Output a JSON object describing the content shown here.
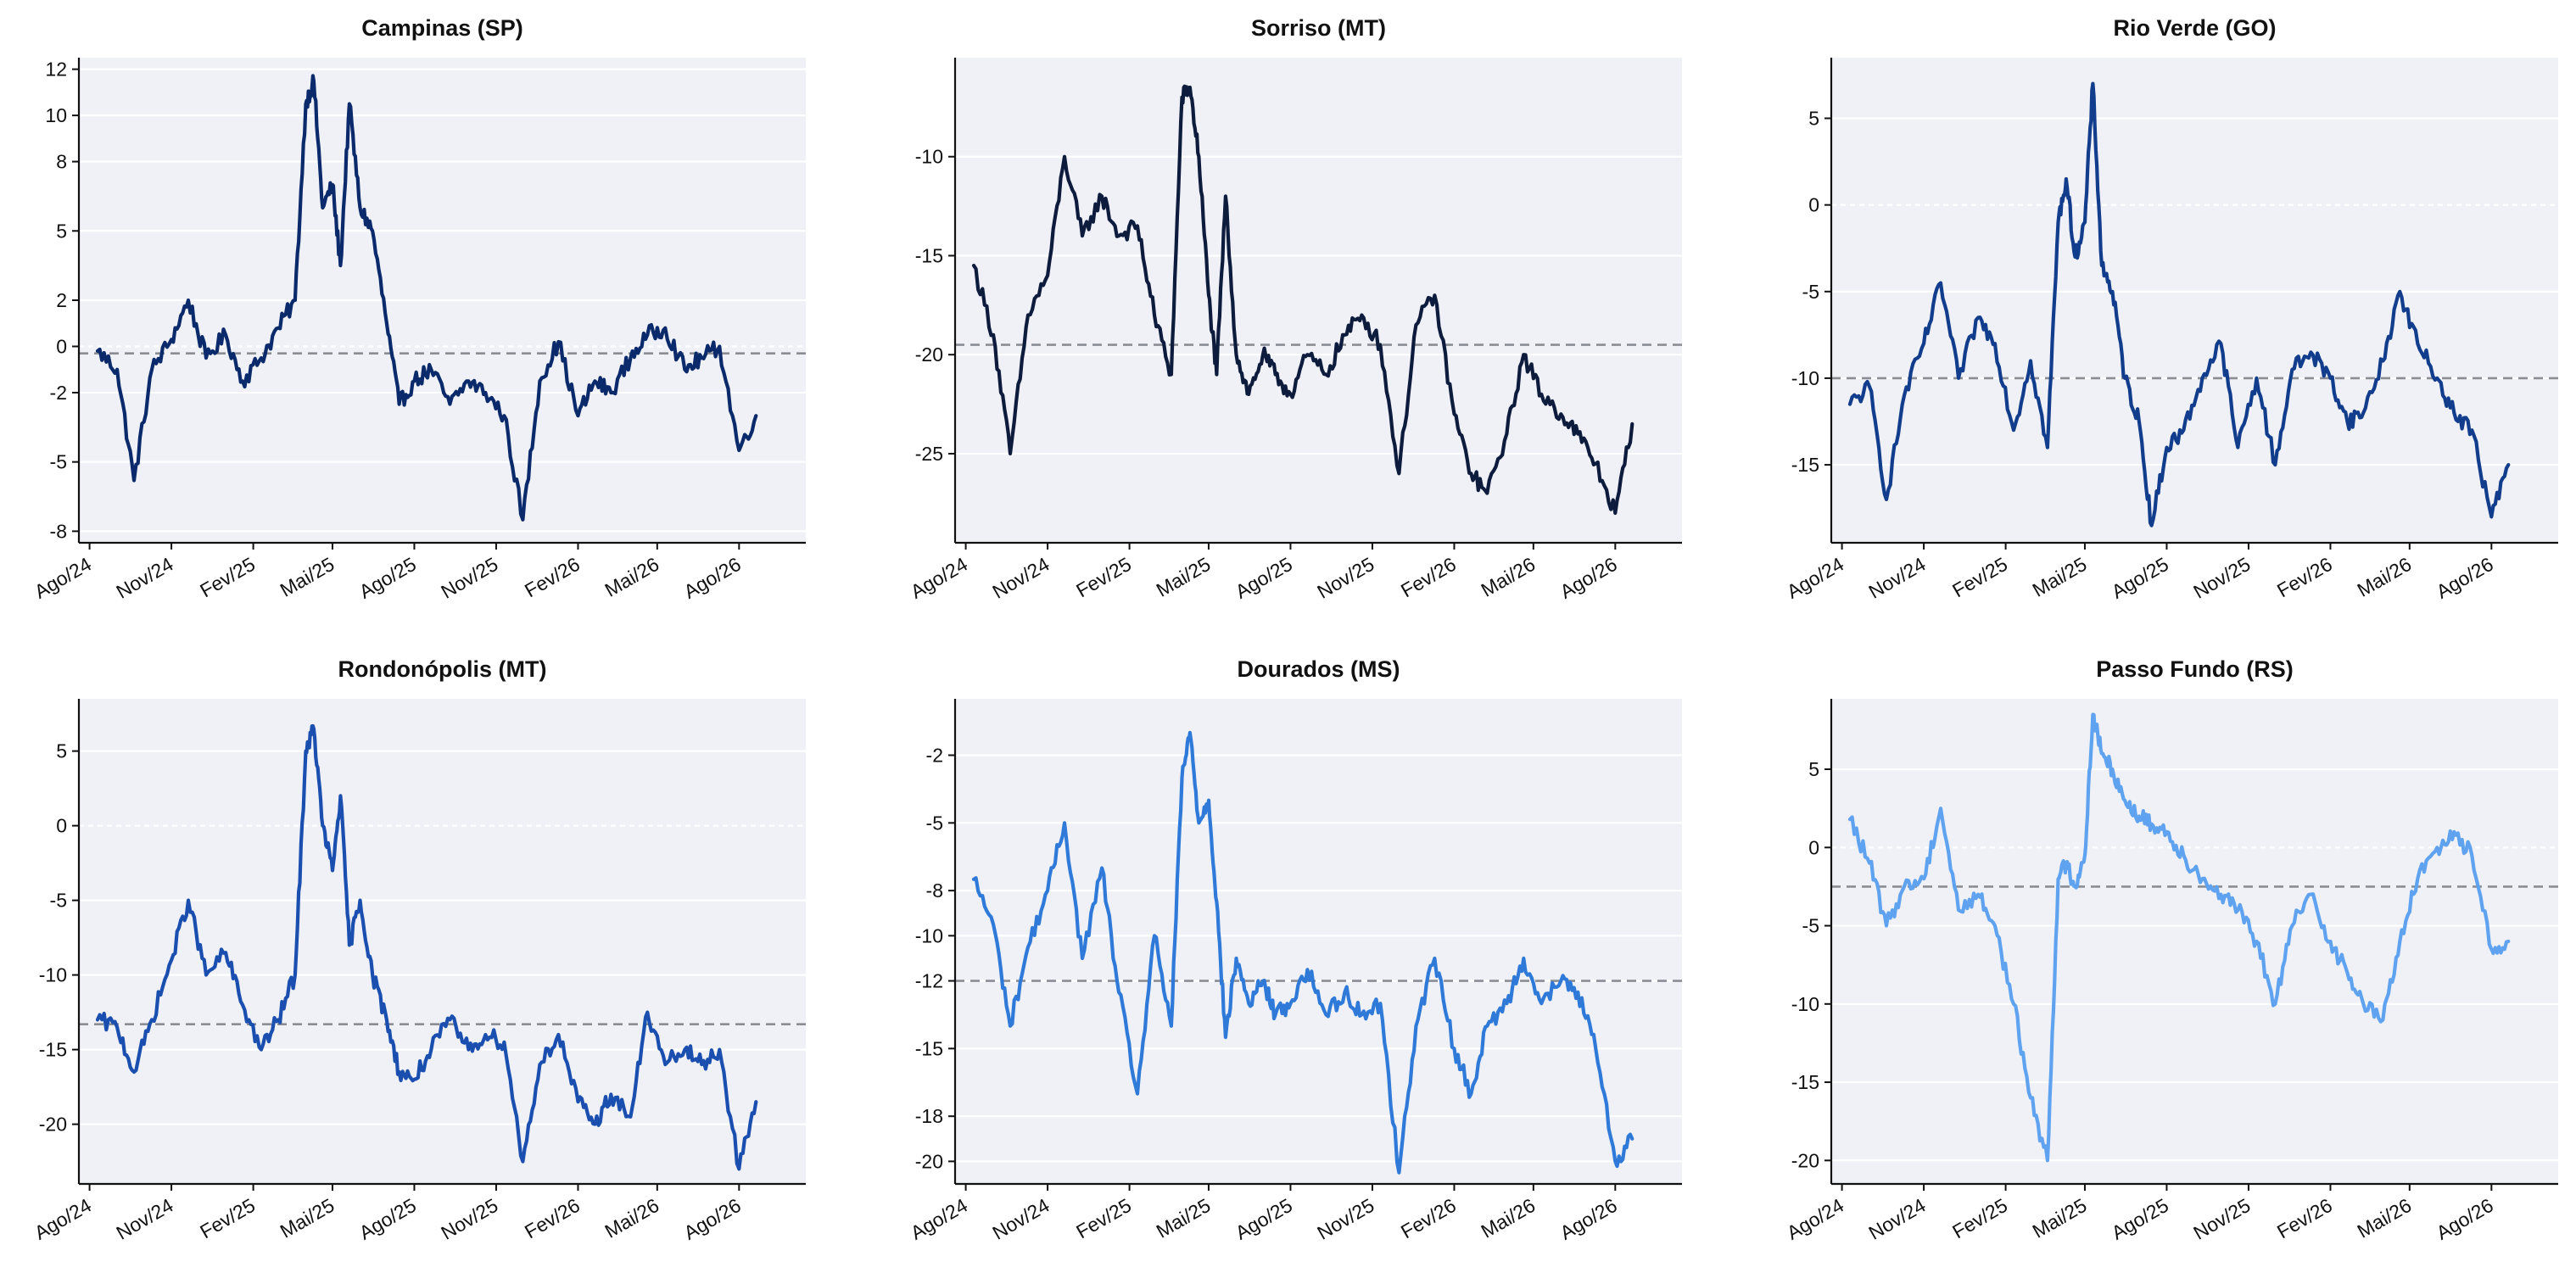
{
  "chart_data": [
    {
      "type": "line",
      "title": "Campinas (SP)",
      "color": "#0b2a6b",
      "x_ticks": [
        "Ago/24",
        "Nov/24",
        "Fev/25",
        "Mai/25",
        "Ago/25",
        "Nov/25",
        "Fev/26",
        "Mai/26",
        "Ago/26"
      ],
      "y_ticks": [
        "-8",
        "-5",
        "-2",
        "0",
        "2",
        "5",
        "8",
        "10",
        "12"
      ],
      "ylim": [
        -8.5,
        12.5
      ],
      "mean": -0.3,
      "series": [
        {
          "x": [
            "2024-08-10",
            "2024-09-01",
            "2024-09-20",
            "2024-10-10",
            "2024-11-01",
            "2024-11-20",
            "2024-12-10",
            "2025-01-01",
            "2025-01-20",
            "2025-02-10",
            "2025-03-01",
            "2025-03-20",
            "2025-04-01",
            "2025-04-10",
            "2025-04-20",
            "2025-05-01",
            "2025-05-10",
            "2025-05-20",
            "2025-06-01",
            "2025-06-15",
            "2025-07-01",
            "2025-07-15",
            "2025-08-01",
            "2025-08-20",
            "2025-09-10",
            "2025-10-01",
            "2025-10-20",
            "2025-11-10",
            "2025-12-01",
            "2025-12-20",
            "2026-01-10",
            "2026-02-01",
            "2026-02-20",
            "2026-03-10",
            "2026-04-01",
            "2026-04-20",
            "2026-05-10",
            "2026-06-01",
            "2026-06-20",
            "2026-07-10",
            "2026-08-01",
            "2026-08-20"
          ],
          "values": [
            -0.2,
            -1.0,
            -5.8,
            -1.0,
            0.3,
            2.0,
            -0.5,
            0.5,
            -1.5,
            -0.5,
            0.8,
            2.0,
            10.5,
            11.5,
            6.0,
            7.0,
            3.5,
            10.5,
            6.0,
            5.0,
            1.0,
            -2.5,
            -1.5,
            -1.0,
            -2.5,
            -1.5,
            -2.0,
            -3.0,
            -7.5,
            -1.5,
            0.2,
            -3.0,
            -1.5,
            -2.0,
            -0.5,
            0.5,
            0.8,
            -1.0,
            -0.5,
            0.0,
            -4.5,
            -3.0
          ]
        }
      ]
    },
    {
      "type": "line",
      "title": "Sorriso (MT)",
      "color": "#0d1b3d",
      "x_ticks": [
        "Ago/24",
        "Nov/24",
        "Fev/25",
        "Mai/25",
        "Ago/25",
        "Nov/25",
        "Fev/26",
        "Mai/26",
        "Ago/26"
      ],
      "y_ticks": [
        "-25",
        "-20",
        "-15",
        "-10"
      ],
      "ylim": [
        -29.5,
        -5
      ],
      "mean": -19.5,
      "series": [
        {
          "x": [
            "2024-08-10",
            "2024-09-01",
            "2024-09-20",
            "2024-10-10",
            "2024-11-01",
            "2024-11-20",
            "2024-12-10",
            "2025-01-01",
            "2025-01-20",
            "2025-02-10",
            "2025-03-01",
            "2025-03-20",
            "2025-04-01",
            "2025-04-10",
            "2025-04-20",
            "2025-05-01",
            "2025-05-10",
            "2025-05-20",
            "2025-06-01",
            "2025-06-15",
            "2025-07-01",
            "2025-07-15",
            "2025-08-01",
            "2025-08-20",
            "2025-09-10",
            "2025-10-01",
            "2025-10-20",
            "2025-11-10",
            "2025-12-01",
            "2025-12-20",
            "2026-01-10",
            "2026-02-01",
            "2026-02-20",
            "2026-03-10",
            "2026-04-01",
            "2026-04-20",
            "2026-05-10",
            "2026-06-01",
            "2026-06-20",
            "2026-07-10",
            "2026-08-01",
            "2026-08-20"
          ],
          "values": [
            -15.5,
            -19.0,
            -25.0,
            -18.0,
            -16.0,
            -10.0,
            -14.0,
            -12.0,
            -14.0,
            -13.5,
            -18.0,
            -21.0,
            -7.0,
            -6.5,
            -10.0,
            -17.0,
            -21.0,
            -12.0,
            -20.0,
            -22.0,
            -20.0,
            -21.0,
            -22.0,
            -20.0,
            -21.0,
            -19.0,
            -18.0,
            -19.5,
            -26.0,
            -18.5,
            -17.0,
            -23.0,
            -26.0,
            -27.0,
            -24.0,
            -20.0,
            -22.0,
            -23.0,
            -24.0,
            -25.5,
            -28.0,
            -23.5
          ]
        }
      ]
    },
    {
      "type": "line",
      "title": "Rio Verde (GO)",
      "color": "#123d8c",
      "x_ticks": [
        "Ago/24",
        "Nov/24",
        "Fev/25",
        "Mai/25",
        "Ago/25",
        "Nov/25",
        "Fev/26",
        "Mai/26",
        "Ago/26"
      ],
      "y_ticks": [
        "-15",
        "-10",
        "-5",
        "0",
        "5"
      ],
      "ylim": [
        -19.5,
        8.5
      ],
      "mean": -10.0,
      "series": [
        {
          "x": [
            "2024-08-10",
            "2024-09-01",
            "2024-09-20",
            "2024-10-10",
            "2024-11-01",
            "2024-11-20",
            "2024-12-10",
            "2025-01-01",
            "2025-01-20",
            "2025-02-10",
            "2025-03-01",
            "2025-03-20",
            "2025-04-01",
            "2025-04-10",
            "2025-04-20",
            "2025-05-01",
            "2025-05-10",
            "2025-05-20",
            "2025-06-01",
            "2025-06-15",
            "2025-07-01",
            "2025-07-15",
            "2025-08-01",
            "2025-08-20",
            "2025-09-10",
            "2025-10-01",
            "2025-10-20",
            "2025-11-10",
            "2025-12-01",
            "2025-12-20",
            "2026-01-10",
            "2026-02-01",
            "2026-02-20",
            "2026-03-10",
            "2026-04-01",
            "2026-04-20",
            "2026-05-10",
            "2026-06-01",
            "2026-06-20",
            "2026-07-10",
            "2026-08-01",
            "2026-08-20"
          ],
          "values": [
            -11.5,
            -10.5,
            -17.0,
            -11.0,
            -8.0,
            -4.5,
            -10.0,
            -6.5,
            -8.0,
            -13.0,
            -9.0,
            -14.0,
            -1.0,
            1.5,
            -3.0,
            -1.0,
            7.0,
            -3.5,
            -5.0,
            -10.0,
            -12.5,
            -18.5,
            -14.0,
            -13.0,
            -10.0,
            -8.0,
            -14.0,
            -10.0,
            -15.0,
            -9.5,
            -8.5,
            -10.0,
            -12.5,
            -12.0,
            -9.0,
            -5.0,
            -8.0,
            -10.0,
            -12.0,
            -13.0,
            -18.0,
            -15.0
          ]
        }
      ]
    },
    {
      "type": "line",
      "title": "Rondonópolis (MT)",
      "color": "#1a4fb0",
      "x_ticks": [
        "Ago/24",
        "Nov/24",
        "Fev/25",
        "Mai/25",
        "Ago/25",
        "Nov/25",
        "Fev/26",
        "Mai/26",
        "Ago/26"
      ],
      "y_ticks": [
        "-20",
        "-15",
        "-10",
        "-5",
        "0",
        "5"
      ],
      "ylim": [
        -24,
        8.5
      ],
      "mean": -13.3,
      "series": [
        {
          "x": [
            "2024-08-10",
            "2024-09-01",
            "2024-09-20",
            "2024-10-10",
            "2024-11-01",
            "2024-11-20",
            "2024-12-10",
            "2025-01-01",
            "2025-01-20",
            "2025-02-10",
            "2025-03-01",
            "2025-03-20",
            "2025-04-01",
            "2025-04-10",
            "2025-04-20",
            "2025-05-01",
            "2025-05-10",
            "2025-05-20",
            "2025-06-01",
            "2025-06-15",
            "2025-07-01",
            "2025-07-15",
            "2025-08-01",
            "2025-08-20",
            "2025-09-10",
            "2025-10-01",
            "2025-10-20",
            "2025-11-10",
            "2025-12-01",
            "2025-12-20",
            "2026-01-10",
            "2026-02-01",
            "2026-02-20",
            "2026-03-10",
            "2026-04-01",
            "2026-04-20",
            "2026-05-10",
            "2026-06-01",
            "2026-06-20",
            "2026-07-10",
            "2026-08-01",
            "2026-08-20"
          ],
          "values": [
            -13.0,
            -13.5,
            -16.5,
            -13.0,
            -9.0,
            -5.0,
            -10.0,
            -8.5,
            -12.0,
            -15.0,
            -13.0,
            -10.0,
            5.0,
            6.5,
            0.0,
            -3.0,
            2.0,
            -8.0,
            -5.0,
            -10.0,
            -13.0,
            -16.5,
            -17.0,
            -15.0,
            -13.0,
            -15.0,
            -14.0,
            -14.5,
            -22.5,
            -16.0,
            -14.0,
            -18.5,
            -20.0,
            -18.0,
            -19.5,
            -12.5,
            -16.0,
            -15.0,
            -16.0,
            -15.0,
            -23.0,
            -18.5
          ]
        }
      ]
    },
    {
      "type": "line",
      "title": "Dourados (MS)",
      "color": "#2f7ad8",
      "x_ticks": [
        "Ago/24",
        "Nov/24",
        "Fev/25",
        "Mai/25",
        "Ago/25",
        "Nov/25",
        "Fev/26",
        "Mai/26",
        "Ago/26"
      ],
      "y_ticks": [
        "-20",
        "-18",
        "-15",
        "-12",
        "-10",
        "-8",
        "-5",
        "-2"
      ],
      "ylim": [
        -21,
        0.5
      ],
      "mean": -12.0,
      "series": [
        {
          "x": [
            "2024-08-10",
            "2024-09-01",
            "2024-09-20",
            "2024-10-10",
            "2024-11-01",
            "2024-11-20",
            "2024-12-10",
            "2025-01-01",
            "2025-01-20",
            "2025-02-10",
            "2025-03-01",
            "2025-03-20",
            "2025-04-01",
            "2025-04-10",
            "2025-04-20",
            "2025-05-01",
            "2025-05-10",
            "2025-05-20",
            "2025-06-01",
            "2025-06-15",
            "2025-07-01",
            "2025-07-15",
            "2025-08-01",
            "2025-08-20",
            "2025-09-10",
            "2025-10-01",
            "2025-10-20",
            "2025-11-10",
            "2025-12-01",
            "2025-12-20",
            "2026-01-10",
            "2026-02-01",
            "2026-02-20",
            "2026-03-10",
            "2026-04-01",
            "2026-04-20",
            "2026-05-10",
            "2026-06-01",
            "2026-06-20",
            "2026-07-10",
            "2026-08-01",
            "2026-08-20"
          ],
          "values": [
            -7.5,
            -9.5,
            -14.0,
            -10.5,
            -8.0,
            -5.0,
            -11.0,
            -7.0,
            -12.5,
            -17.0,
            -10.0,
            -14.0,
            -3.0,
            -1.0,
            -5.0,
            -4.0,
            -8.5,
            -14.5,
            -11.0,
            -13.0,
            -12.0,
            -13.5,
            -13.0,
            -11.5,
            -13.5,
            -12.5,
            -13.5,
            -13.0,
            -20.5,
            -14.0,
            -11.0,
            -15.0,
            -17.0,
            -14.0,
            -13.0,
            -11.0,
            -13.0,
            -12.0,
            -12.5,
            -15.0,
            -20.0,
            -19.0
          ]
        }
      ]
    },
    {
      "type": "line",
      "title": "Passo Fundo (RS)",
      "color": "#5fa2f0",
      "x_ticks": [
        "Ago/24",
        "Nov/24",
        "Fev/25",
        "Mai/25",
        "Ago/25",
        "Nov/25",
        "Fev/26",
        "Mai/26",
        "Ago/26"
      ],
      "y_ticks": [
        "-20",
        "-15",
        "-10",
        "-5",
        "0",
        "5"
      ],
      "ylim": [
        -21.5,
        9.5
      ],
      "mean": -2.5,
      "series": [
        {
          "x": [
            "2024-08-10",
            "2024-09-01",
            "2024-09-20",
            "2024-10-10",
            "2024-11-01",
            "2024-11-20",
            "2024-12-10",
            "2025-01-01",
            "2025-01-20",
            "2025-02-10",
            "2025-03-01",
            "2025-03-20",
            "2025-04-01",
            "2025-04-10",
            "2025-04-20",
            "2025-05-01",
            "2025-05-10",
            "2025-05-20",
            "2025-06-01",
            "2025-06-15",
            "2025-07-01",
            "2025-07-15",
            "2025-08-01",
            "2025-08-20",
            "2025-09-10",
            "2025-10-01",
            "2025-10-20",
            "2025-11-10",
            "2025-12-01",
            "2025-12-20",
            "2026-01-10",
            "2026-02-01",
            "2026-02-20",
            "2026-03-10",
            "2026-04-01",
            "2026-04-20",
            "2026-05-10",
            "2026-06-01",
            "2026-06-20",
            "2026-07-10",
            "2026-08-01",
            "2026-08-20"
          ],
          "values": [
            1.8,
            -1.0,
            -5.0,
            -2.5,
            -2.0,
            2.5,
            -4.0,
            -3.0,
            -5.0,
            -10.0,
            -16.0,
            -20.0,
            -2.0,
            -1.0,
            -2.5,
            -0.5,
            8.5,
            6.0,
            5.0,
            3.0,
            2.0,
            1.5,
            1.0,
            -0.5,
            -2.0,
            -3.0,
            -4.0,
            -6.0,
            -10.0,
            -5.0,
            -3.0,
            -6.0,
            -8.0,
            -10.0,
            -11.0,
            -6.0,
            -2.0,
            0.0,
            1.0,
            -0.5,
            -6.5,
            -6.0
          ]
        }
      ]
    }
  ]
}
